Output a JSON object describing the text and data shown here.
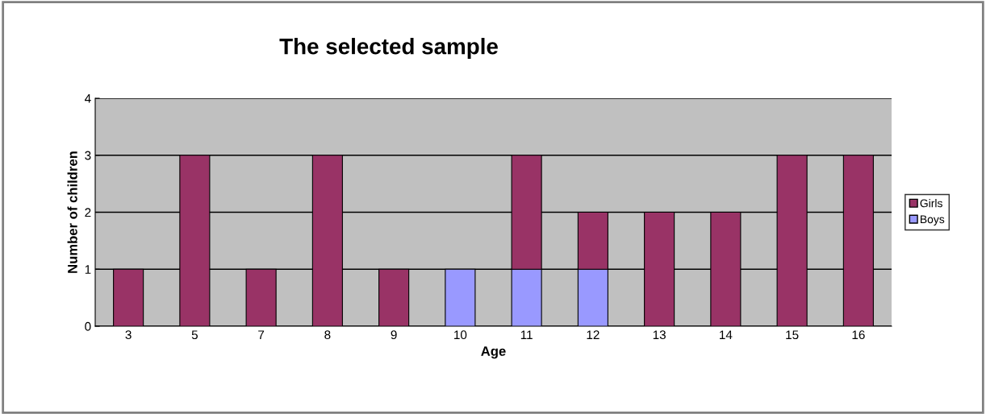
{
  "chart_data": {
    "type": "bar",
    "title": "The selected sample",
    "xlabel": "Age",
    "ylabel": "Number of children",
    "categories": [
      "3",
      "5",
      "7",
      "8",
      "9",
      "10",
      "11",
      "12",
      "13",
      "14",
      "15",
      "16"
    ],
    "stacked": true,
    "series": [
      {
        "name": "Boys",
        "color": "#9999ff",
        "values": [
          0,
          0,
          0,
          0,
          0,
          1,
          1,
          1,
          0,
          0,
          0,
          0
        ]
      },
      {
        "name": "Girls",
        "color": "#993366",
        "values": [
          1,
          3,
          1,
          3,
          1,
          0,
          2,
          1,
          2,
          2,
          3,
          3
        ]
      }
    ],
    "ylim": [
      0,
      4
    ],
    "yticks": [
      0,
      1,
      2,
      3,
      4
    ],
    "grid": "y",
    "legend": "right"
  }
}
